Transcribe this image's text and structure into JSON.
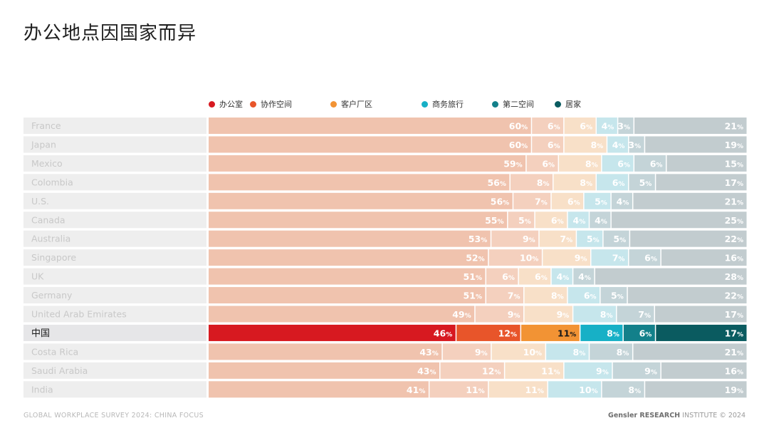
{
  "title": "办公地点因国家而异",
  "footer": {
    "left": "GLOBAL WORKPLACE SURVEY 2024: CHINA FOCUS",
    "brand": "Gensler RESEARCH",
    "institute": "INSTITUTE",
    "copyright": "© 2024"
  },
  "colors": {
    "highlight": [
      "#d71920",
      "#e8552a",
      "#f29334",
      "#17b0c6",
      "#13808a",
      "#0a5b60"
    ],
    "faded": [
      "#f0c3ae",
      "#f4d0be",
      "#f8e0c8",
      "#c6e6ec",
      "#c4d4d8",
      "#c2cccf"
    ],
    "label_bg": "#eeeeee",
    "label_bg_highlight": "#e6e6e8"
  },
  "chart_data": {
    "type": "bar",
    "orientation": "horizontal",
    "stacked": true,
    "unit": "%",
    "title": "办公地点因国家而异",
    "legend": [
      "办公室",
      "协作空间",
      "客户厂区",
      "商务旅行",
      "第二空间",
      "居家"
    ],
    "highlight_category": "中国",
    "categories": [
      "France",
      "Japan",
      "Mexico",
      "Colombia",
      "U.S.",
      "Canada",
      "Australia",
      "Singapore",
      "UK",
      "Germany",
      "United Arab Emirates",
      "中国",
      "Costa Rica",
      "Saudi Arabia",
      "India"
    ],
    "series": [
      {
        "name": "办公室",
        "values": [
          60,
          60,
          59,
          56,
          56,
          55,
          53,
          52,
          51,
          51,
          49,
          46,
          43,
          43,
          41
        ]
      },
      {
        "name": "协作空间",
        "values": [
          6,
          6,
          6,
          8,
          7,
          5,
          9,
          10,
          6,
          7,
          9,
          12,
          9,
          12,
          11
        ]
      },
      {
        "name": "客户厂区",
        "values": [
          6,
          8,
          8,
          8,
          6,
          6,
          7,
          9,
          6,
          8,
          9,
          11,
          10,
          11,
          11
        ]
      },
      {
        "name": "商务旅行",
        "values": [
          4,
          4,
          6,
          6,
          5,
          4,
          5,
          7,
          4,
          6,
          8,
          8,
          8,
          9,
          10
        ]
      },
      {
        "name": "第二空间",
        "values": [
          3,
          3,
          6,
          5,
          4,
          4,
          5,
          6,
          4,
          5,
          7,
          6,
          8,
          9,
          8
        ]
      },
      {
        "name": "居家",
        "values": [
          21,
          19,
          15,
          17,
          21,
          25,
          22,
          16,
          28,
          22,
          17,
          17,
          21,
          16,
          19
        ]
      }
    ]
  }
}
